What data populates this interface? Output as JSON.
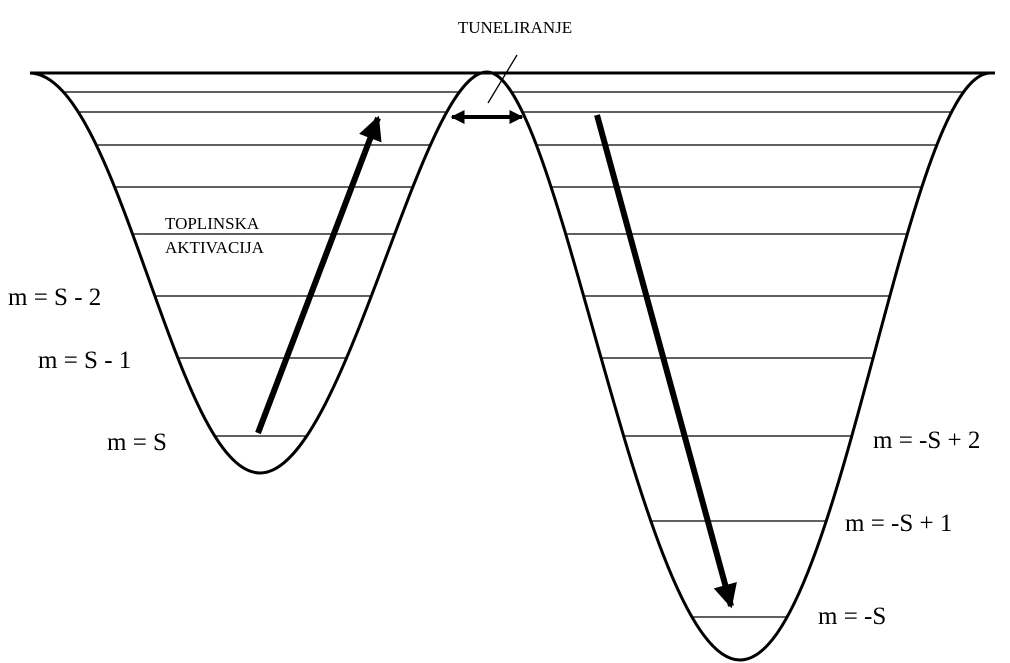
{
  "tunneling_label": "TUNELIRANJE",
  "thermal_label": [
    "TOPLINSKA",
    "AKTIVACIJA"
  ],
  "left_levels": [
    "m = S - 2",
    "m = S - 1",
    "m = S"
  ],
  "right_levels": [
    "m = -S + 2",
    "m = -S + 1",
    "m = -S"
  ]
}
